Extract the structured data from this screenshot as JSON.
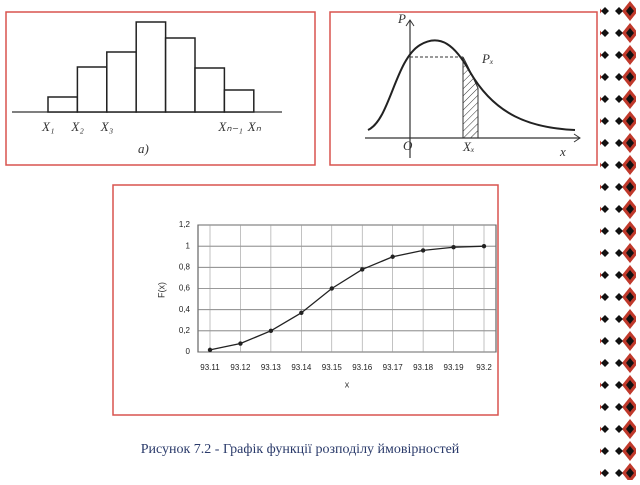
{
  "chart_data": [
    {
      "type": "histogram",
      "bins": [
        "X₁",
        "X₂",
        "X₃",
        null,
        null,
        null,
        "Xₙ₋₁",
        "Xₙ"
      ],
      "values": [
        15,
        45,
        60,
        90,
        74,
        44,
        22
      ],
      "color": "#ffffff",
      "annotation": "a)"
    },
    {
      "type": "line",
      "ylabel": "F(x)",
      "xlabel": "x",
      "categories": [
        "93.11",
        "93.12",
        "93.13",
        "93.14",
        "93.15",
        "93.16",
        "93.17",
        "93.18",
        "93.19",
        "93.2"
      ],
      "values": [
        0.02,
        0.08,
        0.2,
        0.37,
        0.6,
        0.78,
        0.9,
        0.96,
        0.99,
        1.0
      ],
      "color": "#222222",
      "ylim": [
        0,
        1.2
      ],
      "yticks": [
        0,
        {
          "value": 0.2,
          "label": "0,2"
        },
        {
          "value": 0.4,
          "label": "0,4"
        },
        {
          "value": 0.6,
          "label": "0,6"
        },
        {
          "value": 0.8,
          "label": "0,8"
        },
        1,
        {
          "value": 1.2,
          "label": "1,2"
        }
      ],
      "grid": true
    }
  ],
  "diagram": {
    "y_axis": "P",
    "point": "Pₓ",
    "origin": "O",
    "x_point": "Xₓ",
    "x_axis": "x"
  },
  "caption": "Рисунок 7.2 - Графік функції розподілу ймовірностей"
}
